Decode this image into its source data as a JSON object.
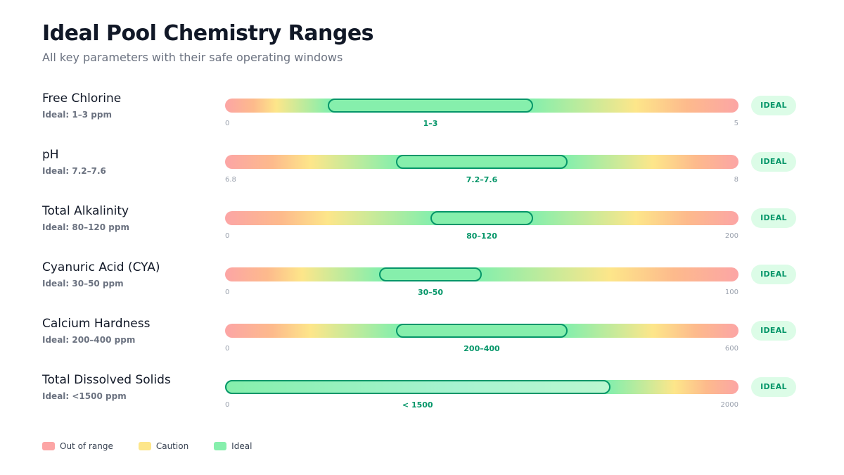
{
  "header": {
    "title": "Ideal Pool Chemistry Ranges",
    "subtitle": "All key parameters with their safe operating windows"
  },
  "colors": {
    "out_of_range": "#fca5a5",
    "caution": "#fde68a",
    "ideal": "#86efac",
    "ideal_border": "#059669",
    "badge_bg": "#dcfce7"
  },
  "chart_data": {
    "type": "range-gauge",
    "rows": [
      {
        "name": "Free Chlorine",
        "ideal_text": "Ideal: 1–3 ppm",
        "min": 0,
        "max": 5,
        "min_label": "0",
        "max_label": "5",
        "ideal_min": 1,
        "ideal_max": 3,
        "range_label": "1–3",
        "status": "IDEAL"
      },
      {
        "name": "pH",
        "ideal_text": "Ideal: 7.2–7.6",
        "min": 6.8,
        "max": 8,
        "min_label": "6.8",
        "max_label": "8",
        "ideal_min": 7.2,
        "ideal_max": 7.6,
        "range_label": "7.2–7.6",
        "status": "IDEAL"
      },
      {
        "name": "Total Alkalinity",
        "ideal_text": "Ideal: 80–120 ppm",
        "min": 0,
        "max": 200,
        "min_label": "0",
        "max_label": "200",
        "ideal_min": 80,
        "ideal_max": 120,
        "range_label": "80–120",
        "status": "IDEAL"
      },
      {
        "name": "Cyanuric Acid (CYA)",
        "ideal_text": "Ideal: 30–50 ppm",
        "min": 0,
        "max": 100,
        "min_label": "0",
        "max_label": "100",
        "ideal_min": 30,
        "ideal_max": 50,
        "range_label": "30–50",
        "status": "IDEAL"
      },
      {
        "name": "Calcium Hardness",
        "ideal_text": "Ideal: 200–400 ppm",
        "min": 0,
        "max": 600,
        "min_label": "0",
        "max_label": "600",
        "ideal_min": 200,
        "ideal_max": 400,
        "range_label": "200–400",
        "status": "IDEAL"
      },
      {
        "name": "Total Dissolved Solids",
        "ideal_text": "Ideal: <1500 ppm",
        "min": 0,
        "max": 2000,
        "min_label": "0",
        "max_label": "2000",
        "ideal_min": 0,
        "ideal_max": 1500,
        "range_label": "< 1500",
        "status": "IDEAL"
      }
    ],
    "legend": [
      {
        "label": "Out of range",
        "color": "#fca5a5"
      },
      {
        "label": "Caution",
        "color": "#fde68a"
      },
      {
        "label": "Ideal",
        "color": "#86efac"
      }
    ]
  }
}
